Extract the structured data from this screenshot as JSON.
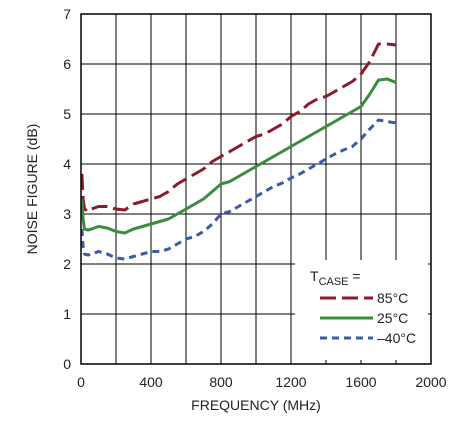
{
  "chart_data": {
    "type": "line",
    "xlabel": "FREQUENCY (MHz)",
    "ylabel": "NOISE FIGURE (dB)",
    "xlim": [
      0,
      2000
    ],
    "ylim": [
      0,
      7
    ],
    "x_ticks": [
      "0",
      "400",
      "800",
      "1200",
      "1600",
      "2000"
    ],
    "y_ticks": [
      "0",
      "1",
      "2",
      "3",
      "4",
      "5",
      "6",
      "7"
    ],
    "grid": true,
    "legend": {
      "placement": "bottom-right",
      "title_main": "T",
      "title_sub": "CASE",
      "title_suffix": " ="
    },
    "series": [
      {
        "name": "85°C",
        "color": "#8b1a2b",
        "dash": "long-dash",
        "x": [
          5,
          12,
          20,
          40,
          60,
          100,
          150,
          200,
          250,
          300,
          350,
          400,
          450,
          500,
          550,
          600,
          650,
          700,
          750,
          800,
          850,
          900,
          950,
          1000,
          1050,
          1100,
          1150,
          1200,
          1250,
          1300,
          1350,
          1400,
          1450,
          1500,
          1550,
          1600,
          1650,
          1700,
          1750,
          1800
        ],
        "y": [
          3.8,
          3.3,
          3.1,
          3.05,
          3.1,
          3.15,
          3.15,
          3.1,
          3.08,
          3.2,
          3.25,
          3.3,
          3.35,
          3.45,
          3.6,
          3.7,
          3.8,
          3.9,
          4.05,
          4.15,
          4.25,
          4.35,
          4.45,
          4.55,
          4.6,
          4.7,
          4.8,
          4.95,
          5.05,
          5.2,
          5.3,
          5.35,
          5.45,
          5.55,
          5.65,
          5.8,
          6.05,
          6.4,
          6.4,
          6.38
        ]
      },
      {
        "name": "25°C",
        "color": "#3a8c3f",
        "dash": "solid",
        "x": [
          5,
          12,
          20,
          40,
          60,
          100,
          150,
          200,
          250,
          300,
          350,
          400,
          450,
          500,
          550,
          600,
          650,
          700,
          750,
          800,
          850,
          900,
          950,
          1000,
          1050,
          1100,
          1150,
          1200,
          1250,
          1300,
          1350,
          1400,
          1450,
          1500,
          1550,
          1600,
          1650,
          1700,
          1750,
          1800
        ],
        "y": [
          3.3,
          2.9,
          2.7,
          2.68,
          2.7,
          2.75,
          2.72,
          2.65,
          2.62,
          2.7,
          2.75,
          2.8,
          2.85,
          2.9,
          3.0,
          3.1,
          3.2,
          3.3,
          3.45,
          3.6,
          3.65,
          3.75,
          3.85,
          3.95,
          4.05,
          4.15,
          4.25,
          4.35,
          4.45,
          4.55,
          4.65,
          4.75,
          4.85,
          4.95,
          5.05,
          5.15,
          5.4,
          5.68,
          5.7,
          5.63
        ]
      },
      {
        "name": "–40°C",
        "color": "#3b5ba5",
        "dash": "short-dash",
        "x": [
          5,
          12,
          20,
          40,
          60,
          100,
          150,
          200,
          250,
          300,
          350,
          400,
          450,
          500,
          550,
          600,
          650,
          700,
          750,
          800,
          850,
          900,
          950,
          1000,
          1050,
          1100,
          1150,
          1200,
          1250,
          1300,
          1350,
          1400,
          1450,
          1500,
          1550,
          1600,
          1650,
          1700,
          1750,
          1800
        ],
        "y": [
          2.7,
          2.35,
          2.2,
          2.18,
          2.2,
          2.25,
          2.2,
          2.12,
          2.1,
          2.15,
          2.2,
          2.25,
          2.25,
          2.3,
          2.4,
          2.5,
          2.55,
          2.65,
          2.8,
          3.0,
          3.05,
          3.15,
          3.25,
          3.35,
          3.45,
          3.55,
          3.62,
          3.72,
          3.8,
          3.9,
          4.0,
          4.1,
          4.2,
          4.28,
          4.35,
          4.5,
          4.7,
          4.88,
          4.85,
          4.82
        ]
      }
    ]
  }
}
